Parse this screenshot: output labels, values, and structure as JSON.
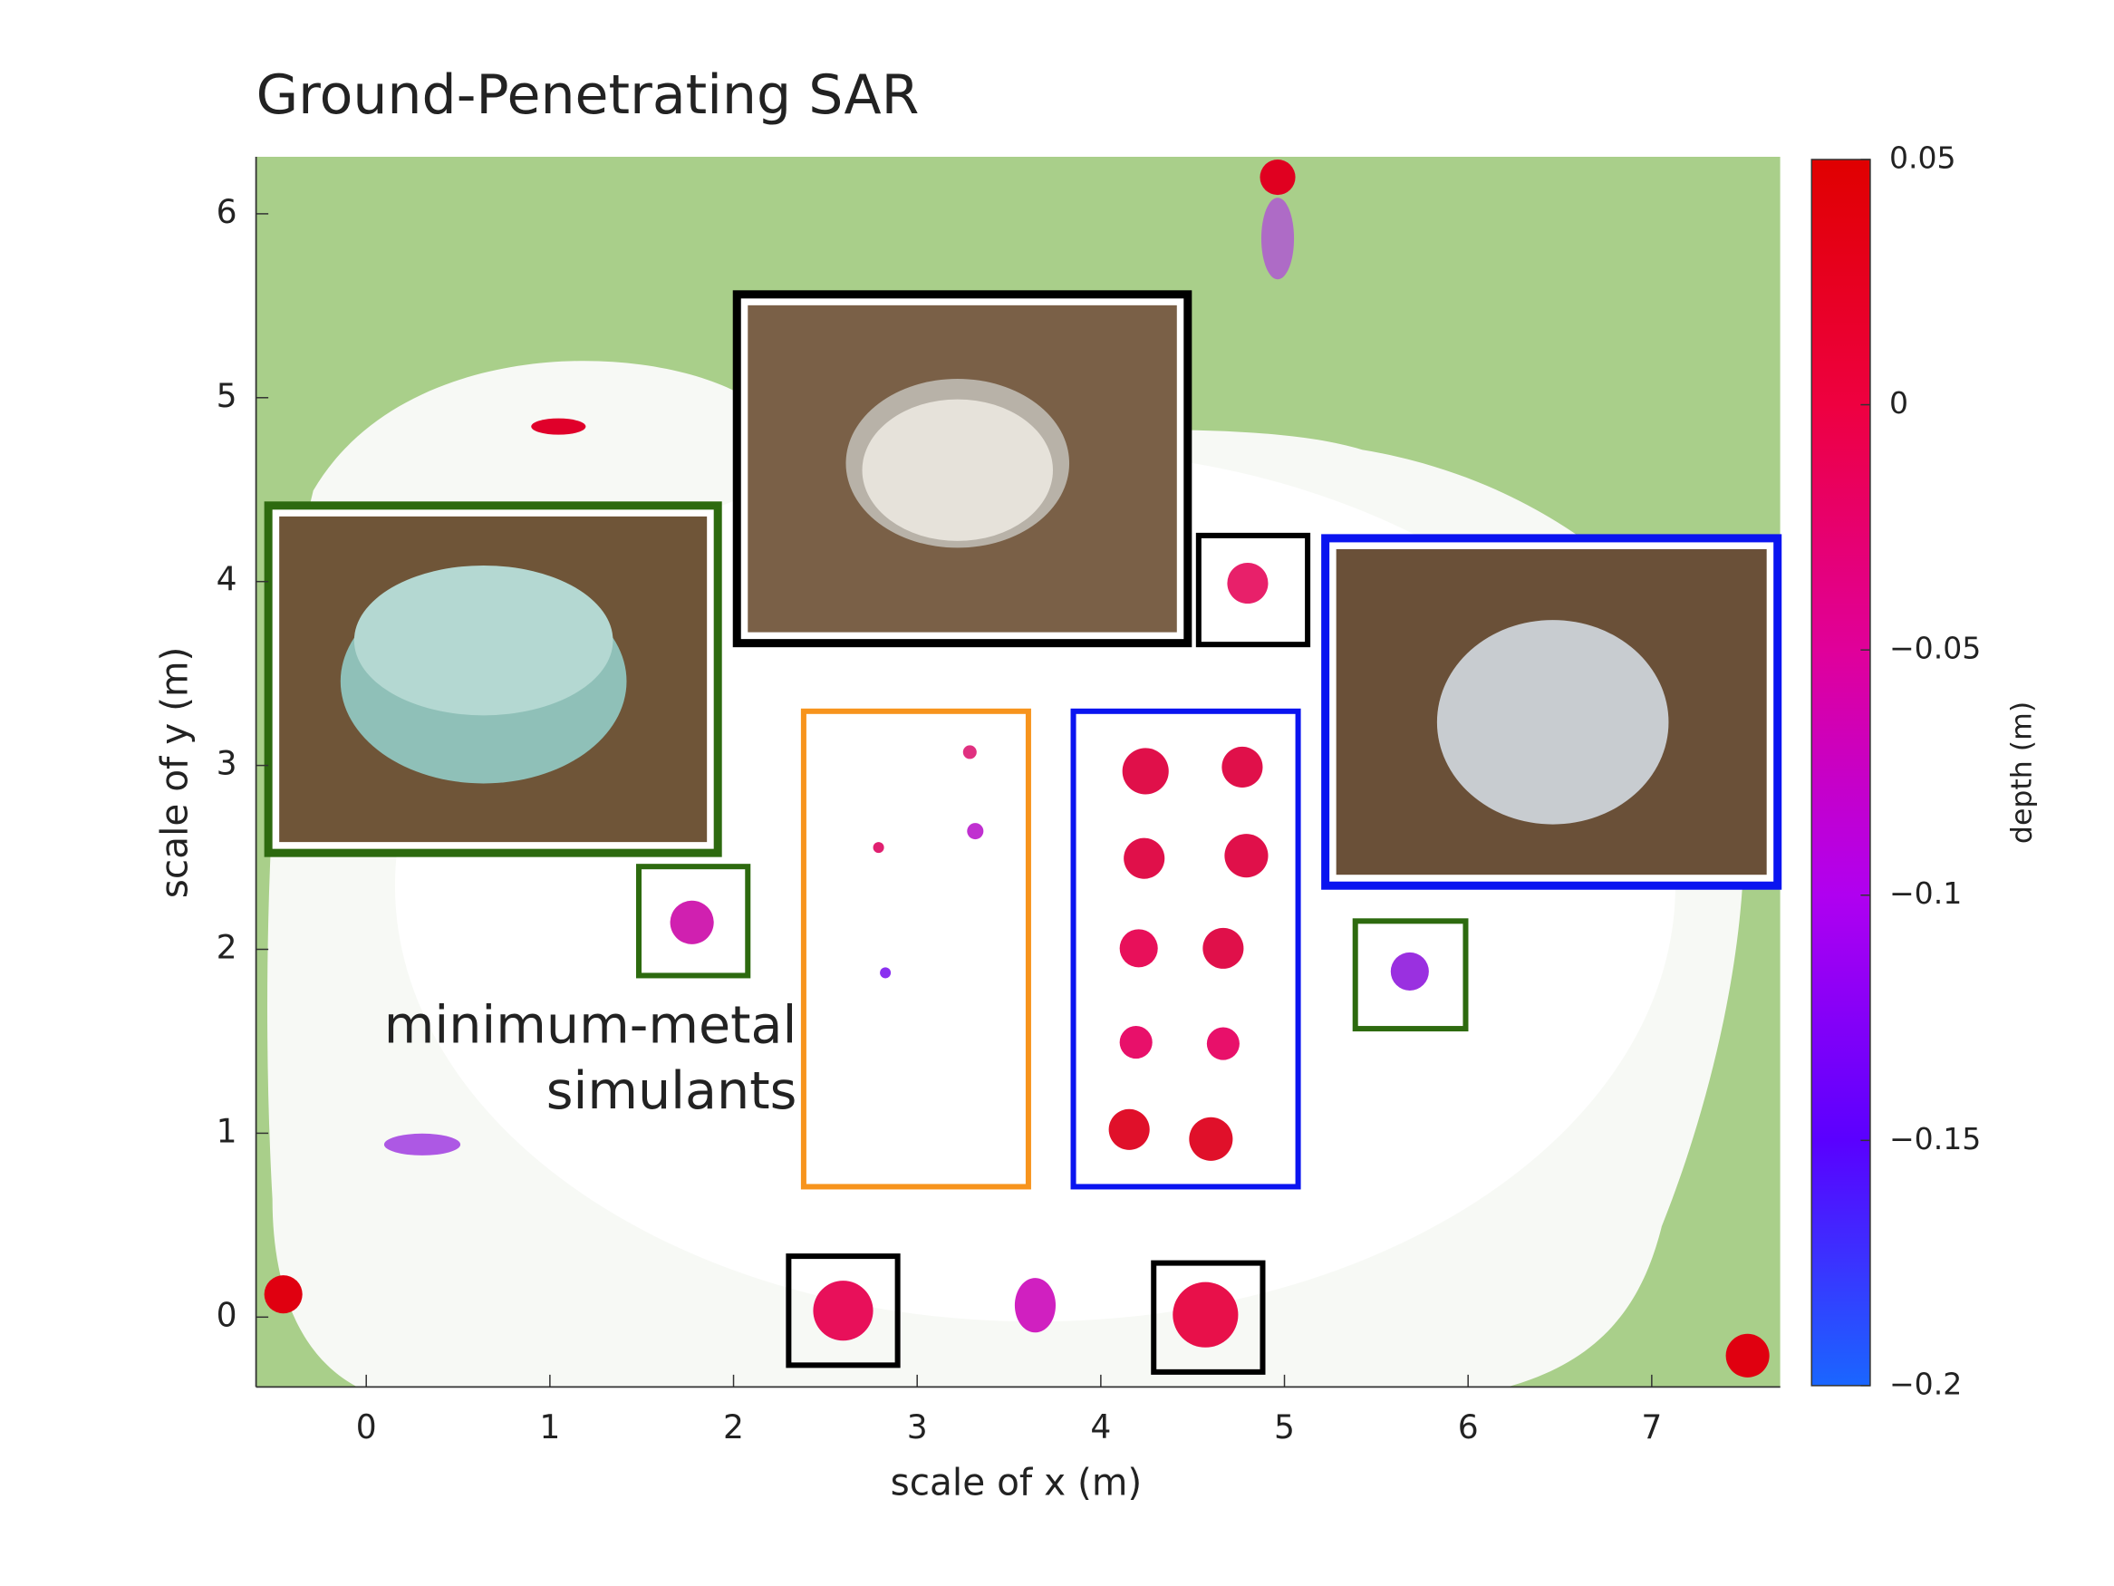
{
  "chart_data": {
    "type": "heatmap",
    "title": "Ground-Penetrating SAR",
    "xlabel": "scale of x (m)",
    "ylabel": "scale of y (m)",
    "xlim": [
      -0.6,
      7.7
    ],
    "ylim": [
      -0.38,
      6.31
    ],
    "xticks": [
      0,
      1,
      2,
      3,
      4,
      5,
      6,
      7
    ],
    "yticks": [
      0,
      1,
      2,
      3,
      4,
      5,
      6
    ],
    "annotation": [
      "minimum-metal",
      "simulants"
    ],
    "annotation_color": "#f7941d",
    "colorbar": {
      "label": "depth (m)",
      "lim": [
        -0.2,
        0.05
      ],
      "ticks": [
        {
          "value": -0.2,
          "label": "−0.2"
        },
        {
          "value": -0.15,
          "label": "−0.15"
        },
        {
          "value": -0.1,
          "label": "−0.1"
        },
        {
          "value": -0.05,
          "label": "−0.05"
        },
        0,
        0.05
      ],
      "colormap": [
        "#1a66ff",
        "#5a00ff",
        "#b000f0",
        "#e0009a",
        "#ee0040",
        "#e00000"
      ]
    }
  }
}
